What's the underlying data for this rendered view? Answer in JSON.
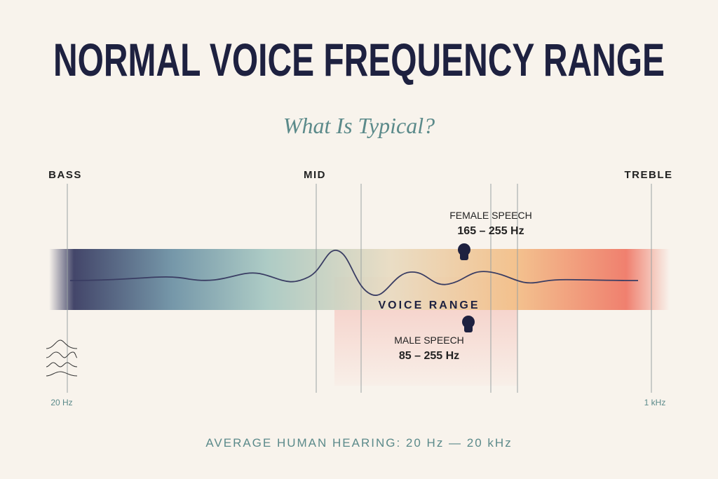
{
  "header": {
    "title": "NORMAL VOICE FREQUENCY RANGE",
    "subtitle": "What Is Typical?"
  },
  "bands": [
    "BASS",
    "MID",
    "TREBLE"
  ],
  "female": {
    "label": "FEMALE SPEECH",
    "range": "165 – 255 Hz"
  },
  "voice_range": "VOICE RANGE",
  "male": {
    "label": "MALE SPEECH",
    "range": "85 – 255 Hz"
  },
  "scale": {
    "left": "20 Hz",
    "right": "1 kHz"
  },
  "footer": "AVERAGE HUMAN HEARING: 20 Hz — 20 kHz"
}
